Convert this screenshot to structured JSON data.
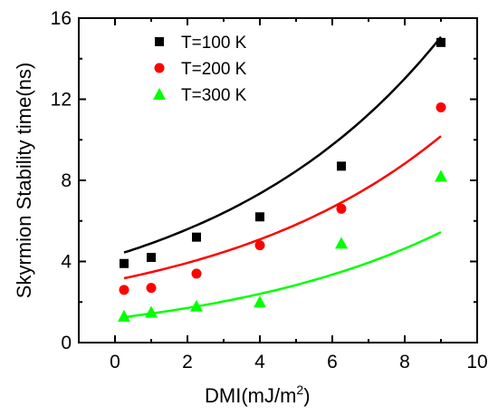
{
  "chart_data": {
    "type": "scatter",
    "title": "",
    "xlabel": "DMI(mJ/m",
    "xlabel_superscript": "2",
    "xlabel_suffix": ")",
    "ylabel": "Skyrmion Stability time(ns)",
    "xlim": [
      -1,
      10
    ],
    "ylim": [
      0,
      16
    ],
    "xticks": [
      0,
      2,
      4,
      6,
      8,
      10
    ],
    "yticks": [
      0,
      4,
      8,
      12,
      16
    ],
    "legend_placement": "top-left",
    "grid": false,
    "series": [
      {
        "name": "T=100 K",
        "marker": "square",
        "color": "#000000",
        "x": [
          0.25,
          1.0,
          2.25,
          4.0,
          6.25,
          9.0
        ],
        "y": [
          3.9,
          4.2,
          5.2,
          6.2,
          8.7,
          14.8
        ],
        "fit": {
          "a": 3.55,
          "b": 0.155,
          "c": 0.75
        }
      },
      {
        "name": "T=200 K",
        "marker": "circle",
        "color": "#ff0000",
        "x": [
          0.25,
          1.0,
          2.25,
          4.0,
          6.25,
          9.0
        ],
        "y": [
          2.6,
          2.7,
          3.4,
          4.8,
          6.6,
          11.6
        ],
        "fit": {
          "a": 2.34,
          "b": 0.155,
          "c": 0.74
        }
      },
      {
        "name": "T=300 K",
        "marker": "triangle",
        "color": "#00ff00",
        "x": [
          0.25,
          1.0,
          2.25,
          4.0,
          6.25,
          9.0
        ],
        "y": [
          1.3,
          1.5,
          1.8,
          2.0,
          4.9,
          8.2
        ],
        "fit": {
          "a": 1.4,
          "b": 0.155,
          "c": -0.2
        }
      }
    ]
  }
}
